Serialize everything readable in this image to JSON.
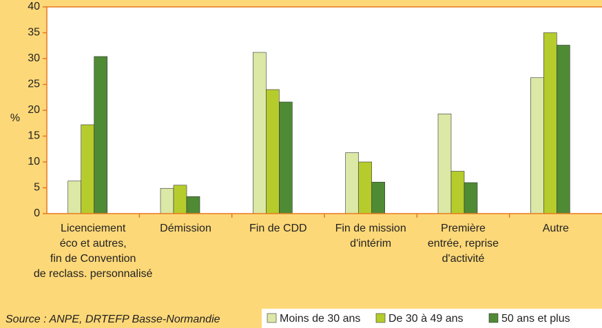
{
  "chart_data": {
    "type": "bar",
    "ylabel": "%",
    "categories": [
      [
        "Licenciement",
        "éco et autres,",
        "fin de Convention",
        "de reclass. personnalisé"
      ],
      [
        "Démission"
      ],
      [
        "Fin de CDD"
      ],
      [
        "Fin de mission",
        "d'intérim"
      ],
      [
        "Première",
        "entrée, reprise",
        "d'activité"
      ],
      [
        "Autre"
      ]
    ],
    "series": [
      {
        "name": "Moins de 30 ans",
        "color": "#dbe8a6",
        "values": [
          6.3,
          4.9,
          31.2,
          11.8,
          19.3,
          26.3
        ]
      },
      {
        "name": "De 30 à 49 ans",
        "color": "#b6cc2c",
        "values": [
          17.2,
          5.5,
          24.0,
          10.0,
          8.2,
          35.0
        ]
      },
      {
        "name": "50 ans et plus",
        "color": "#4f8a35",
        "values": [
          30.4,
          3.3,
          21.6,
          6.1,
          6.0,
          32.6
        ]
      }
    ],
    "ylim": [
      0,
      40
    ],
    "yticks": [
      0,
      5,
      10,
      15,
      20,
      25,
      30,
      35,
      40
    ],
    "source": "Source : ANPE, DRTEFP Basse-Normandie"
  }
}
